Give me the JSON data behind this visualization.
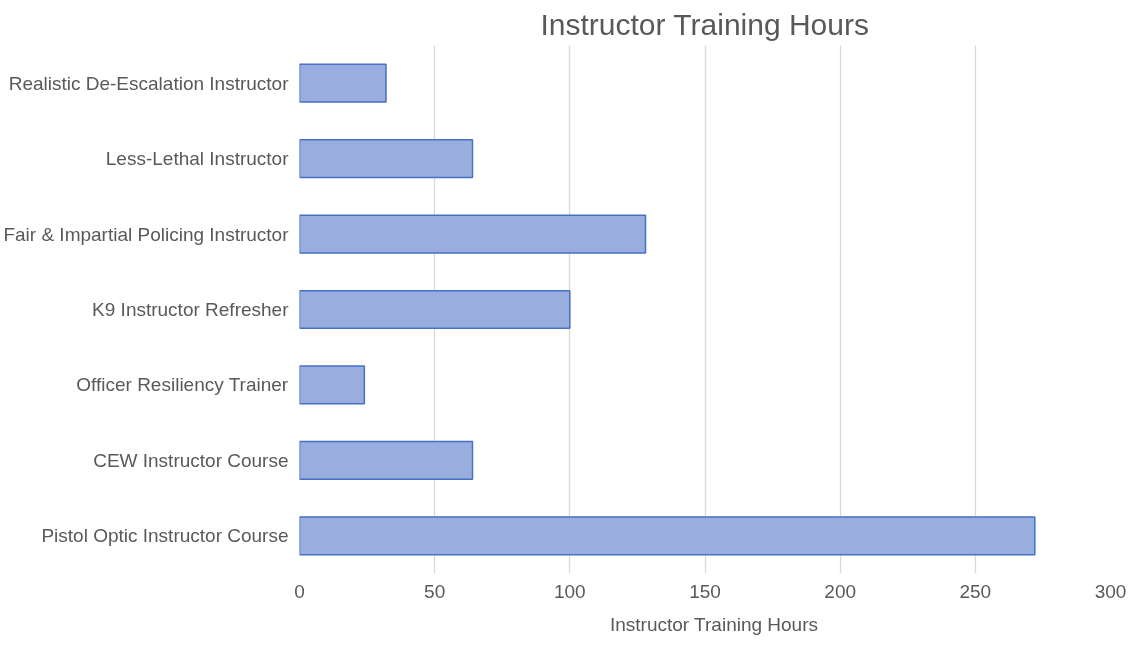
{
  "chart_data": {
    "type": "bar",
    "orientation": "horizontal",
    "title": "Instructor Training Hours",
    "categories": [
      "Realistic De-Escalation Instructor",
      "Less-Lethal Instructor",
      "Fair & Impartial Policing Instructor",
      "K9 Instructor Refresher",
      "Officer Resiliency Trainer",
      "CEW Instructor Course",
      "Pistol Optic Instructor Course"
    ],
    "series": [
      {
        "name": "Instructor Training Hours",
        "color": "#9aaddf",
        "values": [
          32,
          64,
          128,
          100,
          24,
          64,
          272
        ]
      }
    ],
    "xlim": [
      0,
      300
    ],
    "xticks": [
      0,
      50,
      100,
      150,
      200,
      250,
      300
    ],
    "grid": "x",
    "legend": "bottom"
  }
}
